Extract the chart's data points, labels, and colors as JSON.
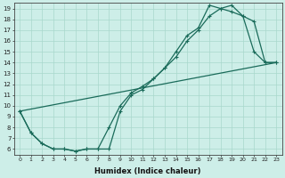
{
  "xlabel": "Humidex (Indice chaleur)",
  "bg_color": "#cdeee8",
  "grid_color": "#a8d8cc",
  "line_color": "#1a6b5a",
  "xlim": [
    -0.5,
    23.5
  ],
  "ylim": [
    5.5,
    19.5
  ],
  "xticks": [
    0,
    1,
    2,
    3,
    4,
    5,
    6,
    7,
    8,
    9,
    10,
    11,
    12,
    13,
    14,
    15,
    16,
    17,
    18,
    19,
    20,
    21,
    22,
    23
  ],
  "yticks": [
    6,
    7,
    8,
    9,
    10,
    11,
    12,
    13,
    14,
    15,
    16,
    17,
    18,
    19
  ],
  "line1_x": [
    0,
    1,
    2,
    3,
    4,
    5,
    6,
    7,
    8,
    9,
    10,
    11,
    12,
    13,
    14,
    15,
    16,
    17,
    18,
    19,
    20,
    21,
    22,
    23
  ],
  "line1_y": [
    9.5,
    7.5,
    6.5,
    6.0,
    6.0,
    5.8,
    6.0,
    6.0,
    6.0,
    9.5,
    11.0,
    11.5,
    12.5,
    13.5,
    15.0,
    16.5,
    17.2,
    19.3,
    19.0,
    19.3,
    18.3,
    17.8,
    14.0,
    14.0
  ],
  "line2_x": [
    0,
    1,
    2,
    3,
    4,
    5,
    6,
    7,
    8,
    9,
    10,
    11,
    12,
    13,
    14,
    15,
    16,
    17,
    18,
    19,
    20,
    21,
    22,
    23
  ],
  "line2_y": [
    9.5,
    7.5,
    6.5,
    6.0,
    6.0,
    5.8,
    6.0,
    6.0,
    8.0,
    10.0,
    11.2,
    11.8,
    12.5,
    13.5,
    14.5,
    16.0,
    17.0,
    18.3,
    19.0,
    18.7,
    18.3,
    15.0,
    14.0,
    14.0
  ],
  "line3_x": [
    0,
    23
  ],
  "line3_y": [
    9.5,
    14.0
  ]
}
